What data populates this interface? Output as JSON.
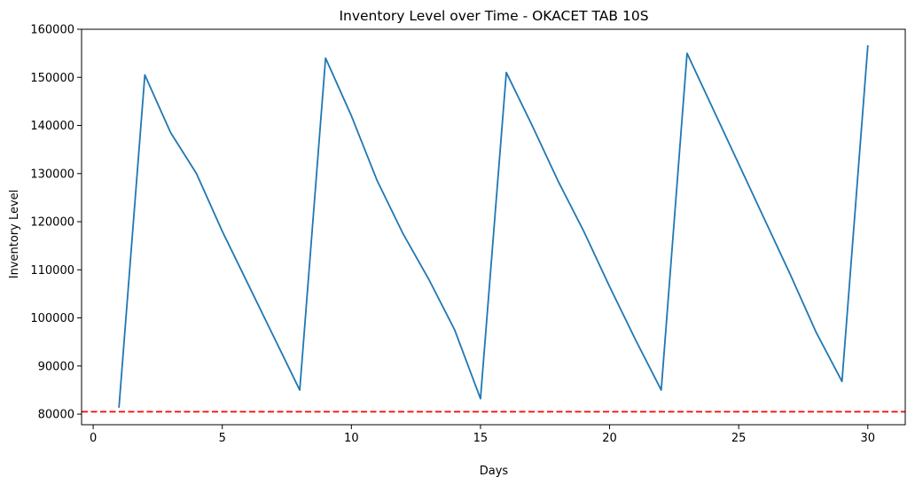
{
  "chart_data": {
    "type": "line",
    "title": "Inventory Level over Time - OKACET TAB 10S",
    "xlabel": "Days",
    "ylabel": "Inventory Level",
    "xlim": [
      -0.45,
      31.45
    ],
    "ylim": [
      77800,
      160000
    ],
    "xticks": [
      0,
      5,
      10,
      15,
      20,
      25,
      30
    ],
    "yticks": [
      80000,
      90000,
      100000,
      110000,
      120000,
      130000,
      140000,
      150000,
      160000
    ],
    "grid": false,
    "series": [
      {
        "color": "#1f77b4",
        "x": [
          1,
          2,
          3,
          4,
          5,
          6,
          7,
          8,
          9,
          10,
          11,
          12,
          13,
          14,
          15,
          16,
          17,
          18,
          19,
          20,
          21,
          22,
          23,
          24,
          25,
          26,
          27,
          28,
          29,
          30
        ],
        "values": [
          81500,
          150500,
          138500,
          130000,
          118000,
          107000,
          96000,
          85000,
          154000,
          142000,
          128500,
          117500,
          108000,
          97500,
          83200,
          151000,
          140000,
          128500,
          118000,
          106500,
          95500,
          85000,
          155000,
          143500,
          132000,
          120500,
          109000,
          97000,
          86800,
          156500
        ]
      }
    ],
    "reference_line": {
      "orientation": "horizontal",
      "y": 80500,
      "color": "#ff0000",
      "style": "dashed"
    }
  }
}
